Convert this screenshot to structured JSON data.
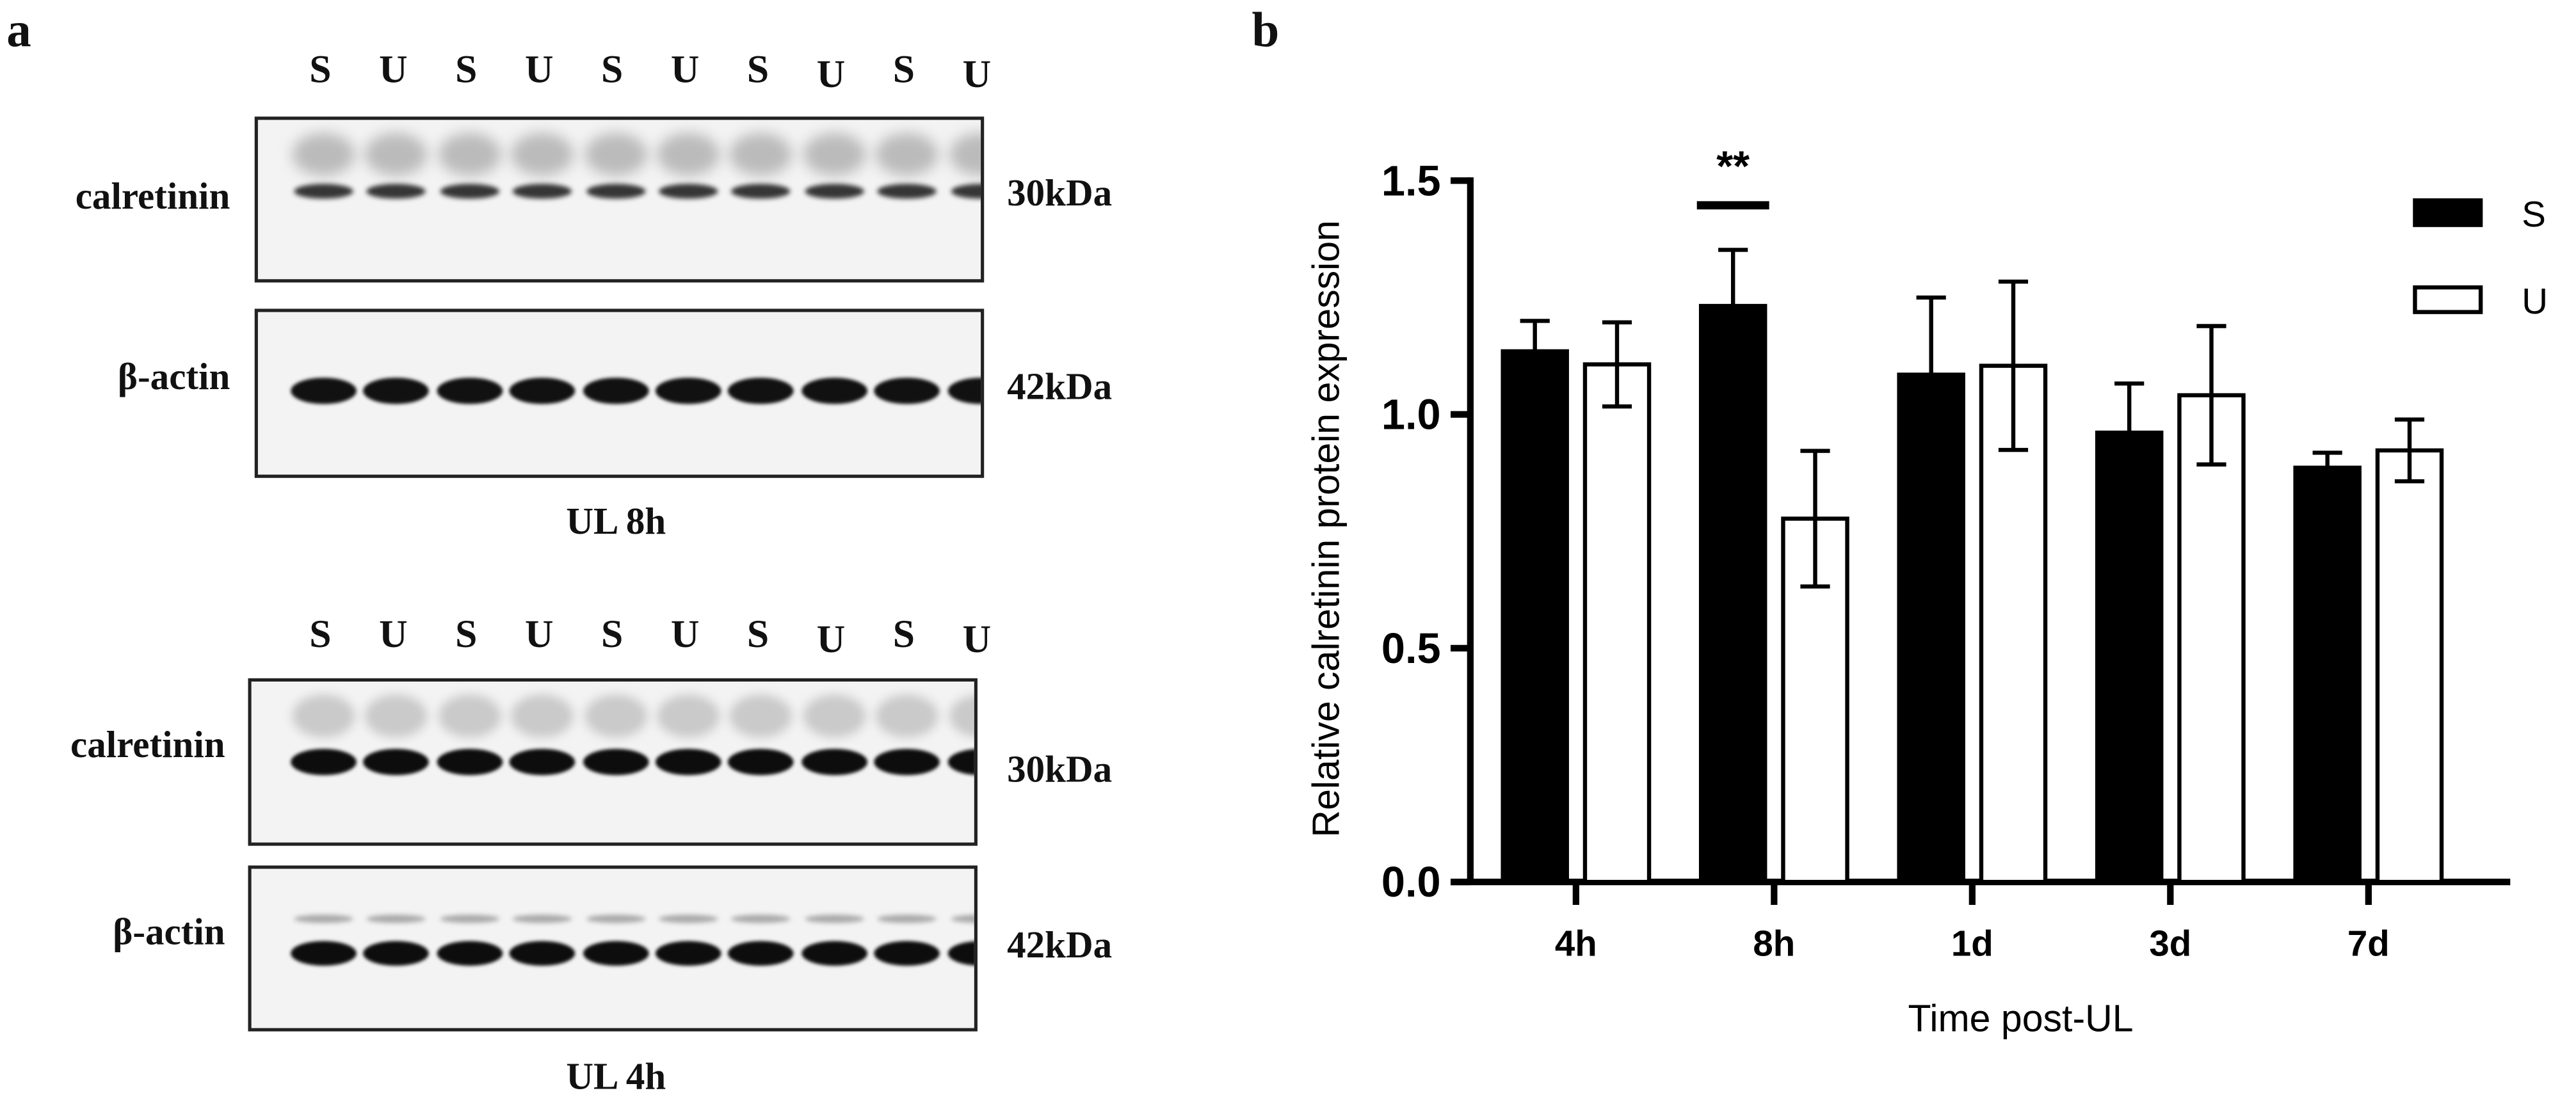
{
  "panel_a": {
    "letter": "a",
    "blots": [
      {
        "lanes": [
          "S",
          "U",
          "S",
          "U",
          "S",
          "U",
          "S",
          "U",
          "S",
          "U"
        ],
        "rows": [
          {
            "label": "calretinin",
            "kda": "30kDa"
          },
          {
            "label": "β-actin",
            "kda": "42kDa"
          }
        ],
        "caption": "UL 8h"
      },
      {
        "lanes": [
          "S",
          "U",
          "S",
          "U",
          "S",
          "U",
          "S",
          "U",
          "S",
          "U"
        ],
        "rows": [
          {
            "label": "calretinin",
            "kda": "30kDa"
          },
          {
            "label": "β-actin",
            "kda": "42kDa"
          }
        ],
        "caption": "UL 4h"
      }
    ]
  },
  "panel_b": {
    "letter": "b"
  },
  "chart_data": {
    "type": "bar",
    "title": "",
    "xlabel": "Time post-UL",
    "ylabel": "Relative calretinin protein expression",
    "categories": [
      "4h",
      "8h",
      "1d",
      "3d",
      "7d"
    ],
    "series": [
      {
        "name": "S",
        "color": "#000000",
        "values": [
          1.135,
          1.232,
          1.085,
          0.961,
          0.886
        ],
        "errors": [
          0.065,
          0.12,
          0.165,
          0.105,
          0.032
        ]
      },
      {
        "name": "U",
        "color": "#ffffff",
        "values": [
          1.107,
          0.777,
          1.104,
          1.041,
          0.923
        ],
        "errors": [
          0.09,
          0.145,
          0.18,
          0.148,
          0.066
        ]
      }
    ],
    "ylim": [
      0,
      1.5
    ],
    "yticks": [
      "0.0",
      "0.5",
      "1.0",
      "1.5"
    ],
    "legend_position": "top-right",
    "annotations": [
      {
        "text": "**",
        "category": "8h"
      }
    ]
  }
}
